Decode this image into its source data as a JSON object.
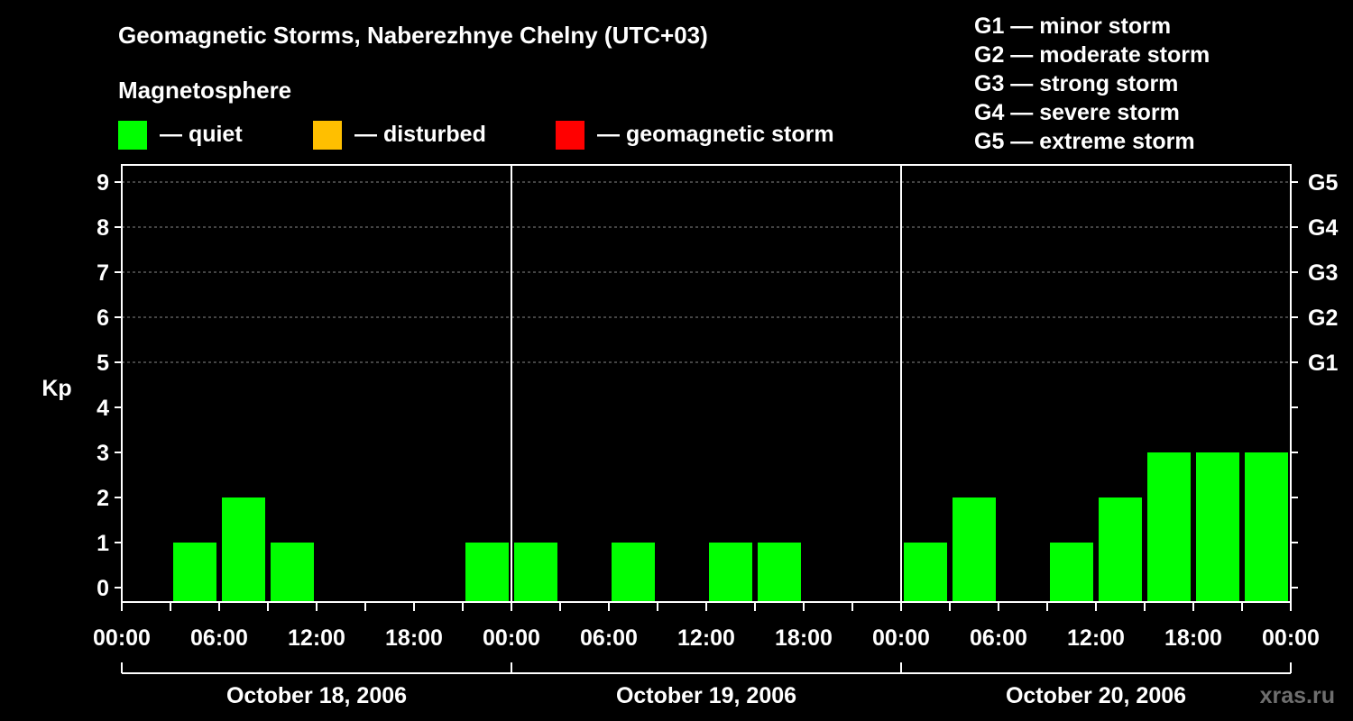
{
  "chart_data": {
    "type": "bar",
    "title": "Geomagnetic Storms, Naberezhnye Chelny (UTC+03)",
    "subtitle": "Magnetosphere",
    "ylabel": "Kp",
    "ylim": [
      0,
      9
    ],
    "yticks": [
      "0",
      "1",
      "2",
      "3",
      "4",
      "5",
      "6",
      "7",
      "8",
      "9"
    ],
    "grid": true,
    "status_legend": [
      {
        "label": "— quiet",
        "color": "#00ff00"
      },
      {
        "label": "— disturbed",
        "color": "#ffbf00"
      },
      {
        "label": "— geomagnetic storm",
        "color": "#ff0000"
      }
    ],
    "storm_legend": [
      "G1 — minor storm",
      "G2 — moderate storm",
      "G3 — strong storm",
      "G4 — severe storm",
      "G5 — extreme storm"
    ],
    "g_levels": [
      {
        "label": "G1",
        "kp": 5
      },
      {
        "label": "G2",
        "kp": 6
      },
      {
        "label": "G3",
        "kp": 7
      },
      {
        "label": "G4",
        "kp": 8
      },
      {
        "label": "G5",
        "kp": 9
      }
    ],
    "days": [
      "October 18, 2006",
      "October 19, 2006",
      "October 20, 2006"
    ],
    "xtick_labels": [
      "00:00",
      "06:00",
      "12:00",
      "18:00",
      "00:00",
      "06:00",
      "12:00",
      "18:00",
      "00:00",
      "06:00",
      "12:00",
      "18:00",
      "00:00"
    ],
    "interval_hours": 3,
    "series": [
      {
        "name": "Kp",
        "values": [
          0,
          1,
          2,
          1,
          0,
          0,
          0,
          1,
          1,
          0,
          1,
          0,
          1,
          1,
          0,
          0,
          1,
          2,
          0,
          1,
          2,
          3,
          3,
          3
        ]
      }
    ],
    "bar_color": "#00ff00"
  },
  "watermark": "xras.ru"
}
